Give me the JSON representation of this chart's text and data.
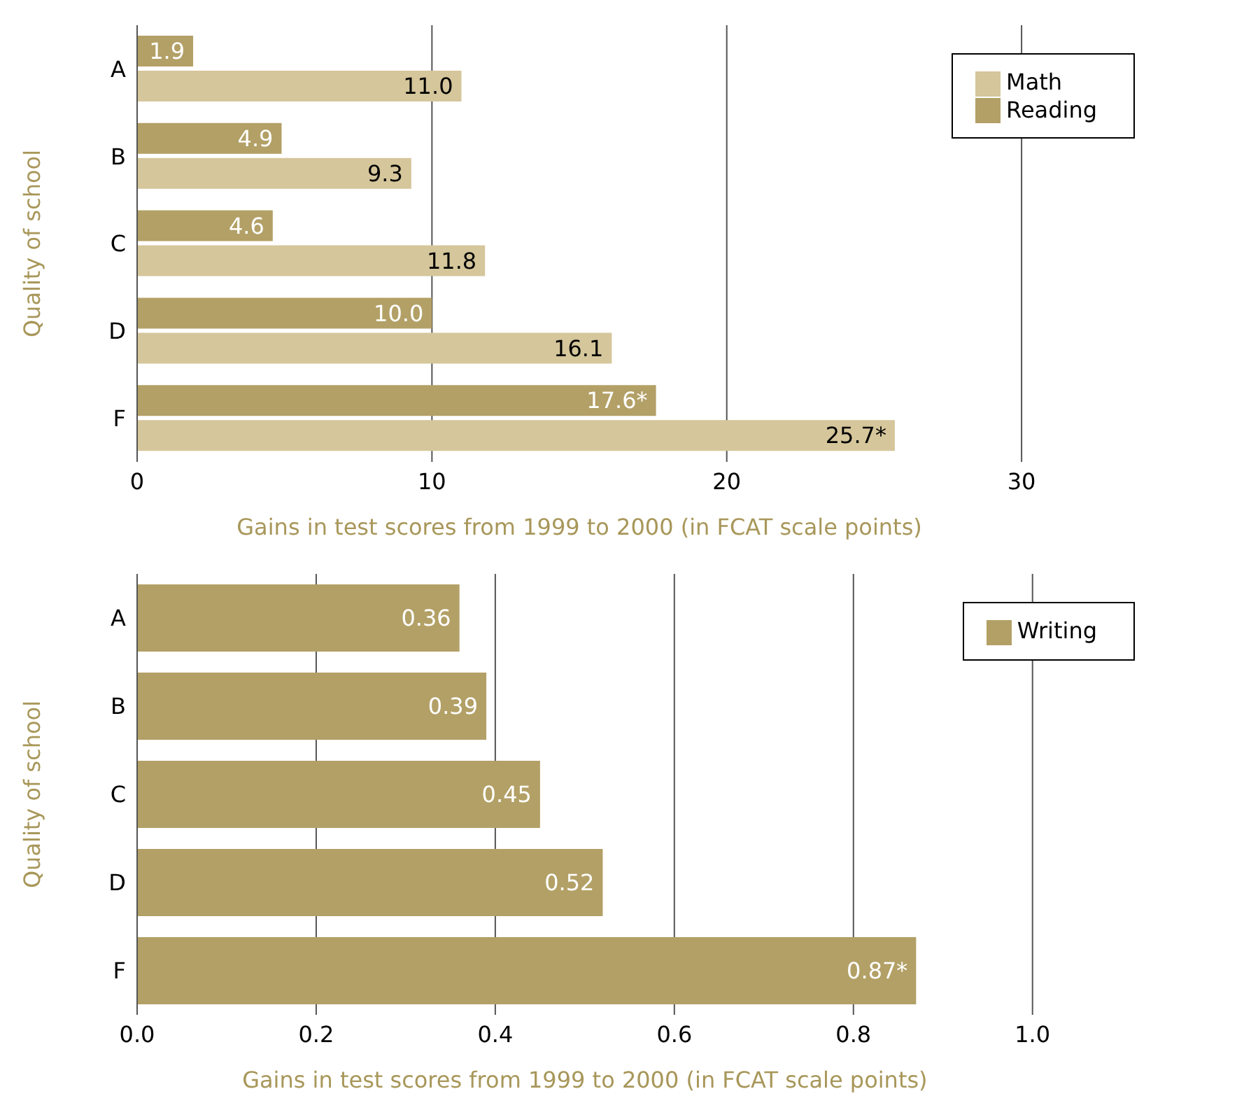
{
  "chart_data": [
    {
      "type": "bar",
      "orientation": "horizontal",
      "categories": [
        "A",
        "B",
        "C",
        "D",
        "F"
      ],
      "series": [
        {
          "name": "Reading",
          "color": "#b3a066",
          "values": [
            1.9,
            4.9,
            4.6,
            10.0,
            17.6
          ],
          "value_labels": [
            "1.9",
            "4.9",
            "4.6",
            "10.0",
            "17.6*"
          ]
        },
        {
          "name": "Math",
          "color": "#d5c69b",
          "values": [
            11.0,
            9.3,
            11.8,
            16.1,
            25.7
          ],
          "value_labels": [
            "11.0",
            "9.3",
            "11.8",
            "16.1",
            "25.7*"
          ]
        }
      ],
      "xlim": [
        0,
        30
      ],
      "xticks": [
        0,
        10,
        20,
        30
      ],
      "xlabel": "Gains in test scores from 1999 to 2000 (in FCAT scale points)",
      "ylabel": "Quality of school",
      "grid": "x",
      "legend": "top right"
    },
    {
      "type": "bar",
      "orientation": "horizontal",
      "categories": [
        "A",
        "B",
        "C",
        "D",
        "F"
      ],
      "series": [
        {
          "name": "Writing",
          "color": "#b3a066",
          "values": [
            0.36,
            0.39,
            0.45,
            0.52,
            0.87
          ],
          "value_labels": [
            "0.36",
            "0.39",
            "0.45",
            "0.52",
            "0.87*"
          ]
        }
      ],
      "xlim": [
        0,
        1
      ],
      "xticks": [
        {
          "value": 0,
          "label": "0.0"
        },
        {
          "value": 0.2,
          "label": "0.2"
        },
        {
          "value": 0.4,
          "label": "0.4"
        },
        {
          "value": 0.6,
          "label": "0.6"
        },
        {
          "value": 0.8,
          "label": "0.8"
        },
        {
          "value": 1,
          "label": "1.0"
        }
      ],
      "xlabel": "Gains in test scores from 1999 to 2000 (in FCAT scale points)",
      "ylabel": "Quality of school",
      "grid": "x",
      "legend": "top right"
    }
  ]
}
